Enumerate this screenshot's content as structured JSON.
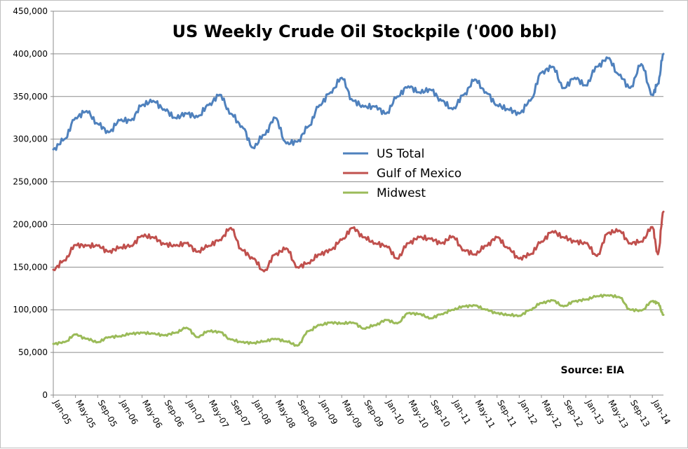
{
  "chart_data": {
    "type": "line",
    "title": "US Weekly Crude Oil Stockpile ('000 bbl)",
    "xlabel": "",
    "ylabel": "",
    "ylim": [
      0,
      450000
    ],
    "yticks": [
      0,
      50000,
      100000,
      150000,
      200000,
      250000,
      300000,
      350000,
      400000,
      450000
    ],
    "ytick_labels": [
      "0",
      "50,000",
      "100,000",
      "150,000",
      "200,000",
      "250,000",
      "300,000",
      "350,000",
      "400,000",
      "450,000"
    ],
    "xtick_labels": [
      "Jan-05",
      "May-05",
      "Sep-05",
      "Jan-06",
      "May-06",
      "Sep-06",
      "Jan-07",
      "May-07",
      "Sep-07",
      "Jan-08",
      "May-08",
      "Sep-08",
      "Jan-09",
      "May-09",
      "Sep-09",
      "Jan-10",
      "May-10",
      "Sep-10",
      "Jan-11",
      "May-11",
      "Sep-11",
      "Jan-12",
      "May-12",
      "Sep-12",
      "Jan-13",
      "May-13",
      "Sep-13",
      "Jan-14"
    ],
    "grid": "horizontal",
    "legend": "center",
    "source": "Source: EIA",
    "series": [
      {
        "name": "US Total",
        "color": "#4f81bd",
        "x": [
          "Jan-05",
          "Mar-05",
          "May-05",
          "Jul-05",
          "Sep-05",
          "Nov-05",
          "Jan-06",
          "Mar-06",
          "May-06",
          "Jul-06",
          "Sep-06",
          "Nov-06",
          "Jan-07",
          "Mar-07",
          "May-07",
          "Jul-07",
          "Sep-07",
          "Nov-07",
          "Jan-08",
          "Mar-08",
          "May-08",
          "Jul-08",
          "Sep-08",
          "Nov-08",
          "Jan-09",
          "Mar-09",
          "May-09",
          "Jul-09",
          "Sep-09",
          "Nov-09",
          "Jan-10",
          "Mar-10",
          "May-10",
          "Jul-10",
          "Sep-10",
          "Nov-10",
          "Jan-11",
          "Mar-11",
          "May-11",
          "Jul-11",
          "Sep-11",
          "Nov-11",
          "Jan-12",
          "Mar-12",
          "May-12",
          "Jul-12",
          "Sep-12",
          "Nov-12",
          "Jan-13",
          "Mar-13",
          "May-13",
          "Jul-13",
          "Sep-13",
          "Nov-13",
          "Jan-14",
          "Feb-14",
          "Mar-14"
        ],
        "values": [
          288000,
          300000,
          325000,
          333000,
          318000,
          308000,
          322000,
          322000,
          340000,
          345000,
          335000,
          325000,
          330000,
          326000,
          340000,
          352000,
          330000,
          315000,
          290000,
          305000,
          325000,
          295000,
          297000,
          315000,
          340000,
          355000,
          372000,
          345000,
          338000,
          338000,
          330000,
          350000,
          362000,
          355000,
          358000,
          345000,
          335000,
          352000,
          370000,
          355000,
          340000,
          335000,
          330000,
          345000,
          378000,
          385000,
          360000,
          372000,
          363000,
          385000,
          395000,
          375000,
          360000,
          388000,
          352000,
          365000,
          400000
        ]
      },
      {
        "name": "Gulf of Mexico",
        "color": "#c0504d",
        "x": [
          "Jan-05",
          "Mar-05",
          "May-05",
          "Jul-05",
          "Sep-05",
          "Nov-05",
          "Jan-06",
          "Mar-06",
          "May-06",
          "Jul-06",
          "Sep-06",
          "Nov-06",
          "Jan-07",
          "Mar-07",
          "May-07",
          "Jul-07",
          "Sep-07",
          "Nov-07",
          "Jan-08",
          "Mar-08",
          "May-08",
          "Jul-08",
          "Sep-08",
          "Nov-08",
          "Jan-09",
          "Mar-09",
          "May-09",
          "Jul-09",
          "Sep-09",
          "Nov-09",
          "Jan-10",
          "Mar-10",
          "May-10",
          "Jul-10",
          "Sep-10",
          "Nov-10",
          "Jan-11",
          "Mar-11",
          "May-11",
          "Jul-11",
          "Sep-11",
          "Nov-11",
          "Jan-12",
          "Mar-12",
          "May-12",
          "Jul-12",
          "Sep-12",
          "Nov-12",
          "Jan-13",
          "Mar-13",
          "May-13",
          "Jul-13",
          "Sep-13",
          "Nov-13",
          "Jan-14",
          "Feb-14",
          "Mar-14"
        ],
        "values": [
          147000,
          158000,
          176000,
          175000,
          175000,
          168000,
          173000,
          175000,
          187000,
          185000,
          177000,
          175000,
          178000,
          168000,
          175000,
          182000,
          196000,
          170000,
          160000,
          145000,
          165000,
          172000,
          150000,
          155000,
          165000,
          170000,
          182000,
          196000,
          185000,
          178000,
          175000,
          160000,
          178000,
          185000,
          183000,
          178000,
          186000,
          170000,
          165000,
          175000,
          185000,
          172000,
          160000,
          165000,
          180000,
          192000,
          185000,
          180000,
          178000,
          163000,
          190000,
          193000,
          178000,
          180000,
          197000,
          165000,
          215000
        ]
      },
      {
        "name": "Midwest",
        "color": "#9bbb59",
        "x": [
          "Jan-05",
          "Mar-05",
          "May-05",
          "Jul-05",
          "Sep-05",
          "Nov-05",
          "Jan-06",
          "Mar-06",
          "May-06",
          "Jul-06",
          "Sep-06",
          "Nov-06",
          "Jan-07",
          "Mar-07",
          "May-07",
          "Jul-07",
          "Sep-07",
          "Nov-07",
          "Jan-08",
          "Mar-08",
          "May-08",
          "Jul-08",
          "Sep-08",
          "Nov-08",
          "Jan-09",
          "Mar-09",
          "May-09",
          "Jul-09",
          "Sep-09",
          "Nov-09",
          "Jan-10",
          "Mar-10",
          "May-10",
          "Jul-10",
          "Sep-10",
          "Nov-10",
          "Jan-11",
          "Mar-11",
          "May-11",
          "Jul-11",
          "Sep-11",
          "Nov-11",
          "Jan-12",
          "Mar-12",
          "May-12",
          "Jul-12",
          "Sep-12",
          "Nov-12",
          "Jan-13",
          "Mar-13",
          "May-13",
          "Jul-13",
          "Sep-13",
          "Nov-13",
          "Jan-14",
          "Feb-14",
          "Mar-14"
        ],
        "values": [
          60000,
          62000,
          71000,
          66000,
          62000,
          68000,
          69000,
          72000,
          73000,
          72000,
          70000,
          73000,
          79000,
          68000,
          75000,
          74000,
          65000,
          62000,
          61000,
          63000,
          66000,
          63000,
          58000,
          75000,
          82000,
          85000,
          84000,
          85000,
          78000,
          82000,
          88000,
          84000,
          96000,
          95000,
          90000,
          95000,
          100000,
          104000,
          105000,
          100000,
          96000,
          94000,
          93000,
          100000,
          108000,
          111000,
          104000,
          110000,
          112000,
          116000,
          117000,
          115000,
          100000,
          99000,
          110000,
          108000,
          94000
        ]
      }
    ]
  }
}
